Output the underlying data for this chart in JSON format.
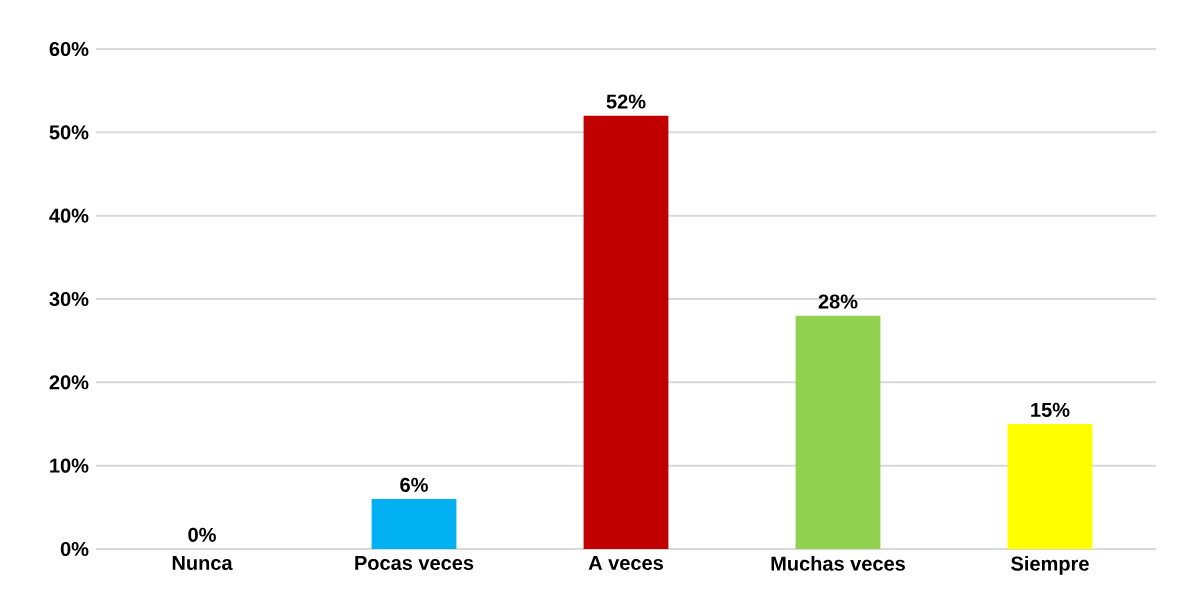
{
  "chart_data": {
    "type": "bar",
    "categories": [
      "Nunca",
      "Pocas veces",
      "A  veces",
      "Muchas veces",
      "Siempre"
    ],
    "values": [
      0,
      6,
      52,
      28,
      15
    ],
    "colors": [
      "#5b2c86",
      "#00b0f0",
      "#c00000",
      "#92d050",
      "#ffff00"
    ],
    "value_labels": [
      "0%",
      "6%",
      "52%",
      "28%",
      "15%"
    ],
    "ylim": [
      0,
      60
    ],
    "yticks": [
      {
        "value": 0,
        "label": "0%"
      },
      {
        "value": 10,
        "label": "10%"
      },
      {
        "value": 20,
        "label": "20%"
      },
      {
        "value": 30,
        "label": "30%"
      },
      {
        "value": 40,
        "label": "40%"
      },
      {
        "value": 50,
        "label": "50%"
      },
      {
        "value": 60,
        "label": "60%"
      }
    ],
    "grid": "y"
  }
}
